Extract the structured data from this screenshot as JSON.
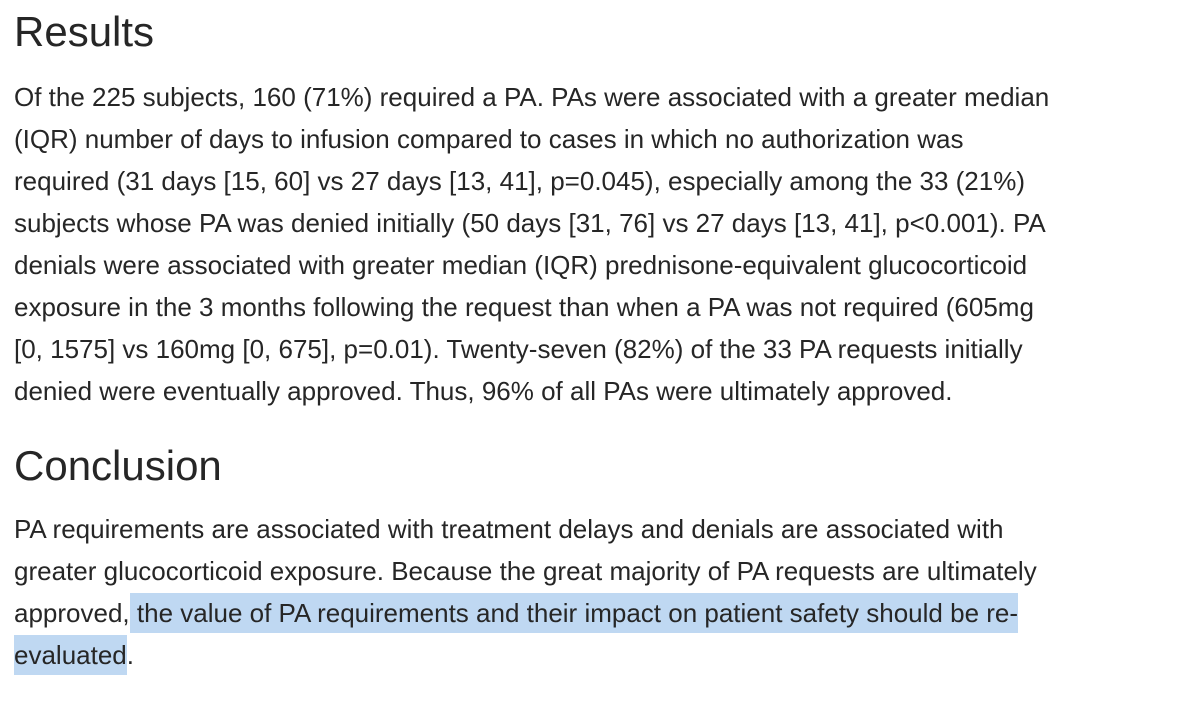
{
  "page": {
    "background_color": "#ffffff",
    "text_color": "#262626",
    "highlight_color": "#bfd8f2"
  },
  "results": {
    "heading": "Results",
    "lines": [
      "Of the 225 subjects, 160 (71%) required a PA. PAs were associated with a greater median",
      "(IQR) number of days to infusion compared to cases in which no authorization was",
      "required (31 days [15, 60] vs 27 days [13, 41], p=0.045), especially among the 33 (21%)",
      "subjects whose PA was denied initially (50 days [31, 76] vs 27 days [13, 41], p<0.001). PA",
      "denials were associated with greater median (IQR) prednisone-equivalent glucocorticoid",
      "exposure in the 3 months following the request than when a PA was not required (605mg",
      "[0, 1575] vs 160mg [0, 675], p=0.01). Twenty-seven (82%) of the 33 PA requests initially",
      "denied were eventually approved. Thus, 96% of all PAs were ultimately approved."
    ]
  },
  "conclusion": {
    "heading": "Conclusion",
    "lines": [
      "PA requirements are associated with treatment delays and denials are associated with",
      "greater glucocorticoid exposure. Because the great majority of PA requests are ultimately"
    ],
    "wrap_line": {
      "pre": "approved,",
      "highlighted": " the value of PA requirements and their impact on patient safety should be re-"
    },
    "final_line": {
      "highlighted": "evaluated",
      "post": "."
    }
  }
}
